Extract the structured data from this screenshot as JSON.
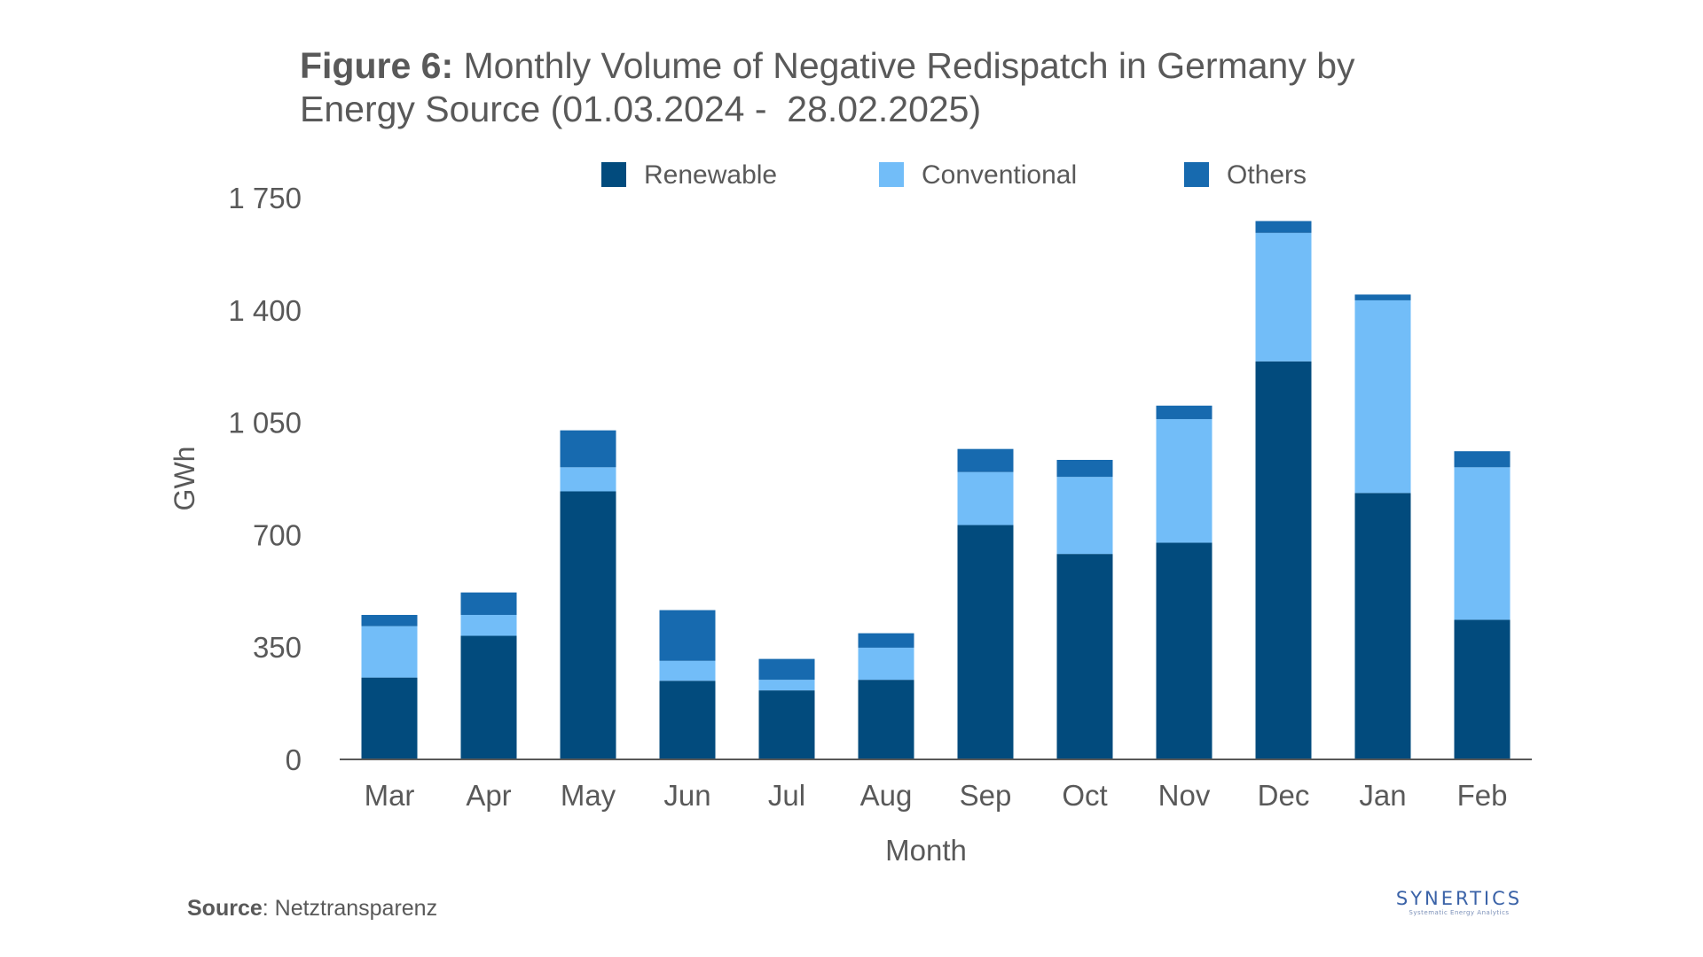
{
  "title": {
    "bold": "Figure 6:",
    "rest_line1": " Monthly Volume of Negative Redispatch in Germany by",
    "line2": "Energy Source (01.03.2024 -  28.02.2025)"
  },
  "source": {
    "label": "Source",
    "text": ": Netztransparenz"
  },
  "brand": {
    "name": "SYNERTICS",
    "tagline": "Systematic Energy Analytics"
  },
  "colors": {
    "renewable": "#024b7d",
    "conventional": "#72bdf8",
    "others": "#176aaf",
    "axis": "#595959",
    "text": "#595959"
  },
  "chart_data": {
    "type": "bar",
    "stacked": true,
    "categories": [
      "Mar",
      "Apr",
      "May",
      "Jun",
      "Jul",
      "Aug",
      "Sep",
      "Oct",
      "Nov",
      "Dec",
      "Jan",
      "Feb"
    ],
    "series": [
      {
        "name": "Renewable",
        "values": [
          255,
          385,
          835,
          245,
          215,
          248,
          730,
          640,
          675,
          1240,
          830,
          435
        ]
      },
      {
        "name": "Conventional",
        "values": [
          160,
          65,
          75,
          62,
          33,
          100,
          165,
          240,
          385,
          400,
          600,
          475
        ]
      },
      {
        "name": "Others",
        "values": [
          35,
          70,
          115,
          158,
          65,
          45,
          72,
          53,
          42,
          37,
          18,
          50
        ]
      }
    ],
    "xlabel": "Month",
    "ylabel": "GWh",
    "ylim": [
      0,
      1750
    ],
    "yticks": [
      0,
      350,
      700,
      1050,
      1400,
      1750
    ],
    "ytick_labels": [
      "0",
      "350",
      "700",
      "1 050",
      "1 400",
      "1 750"
    ],
    "grid": false,
    "legend_position": "top"
  }
}
